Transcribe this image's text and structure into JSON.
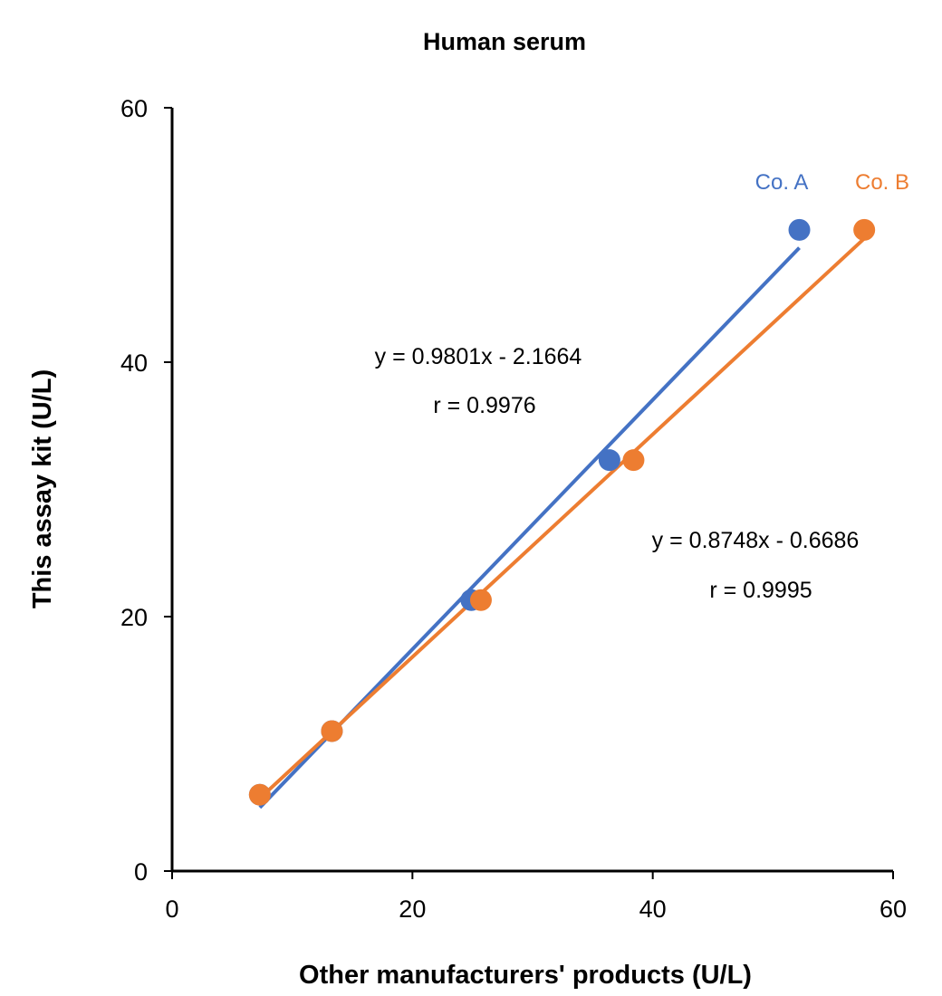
{
  "chart_data": {
    "type": "scatter",
    "title": "Human serum",
    "xlabel": "Other manufacturers' products (U/L)",
    "ylabel": "This assay kit (U/L)",
    "xlim": [
      0,
      60
    ],
    "ylim": [
      0,
      60
    ],
    "xticks": [
      "0",
      "20",
      "40",
      "60"
    ],
    "yticks": [
      "0",
      "20",
      "40",
      "60"
    ],
    "grid": false,
    "series": [
      {
        "name": "Co. A",
        "color": "#4472C4",
        "x": [
          7.3,
          13.3,
          24.9,
          36.4,
          52.2
        ],
        "y": [
          6.0,
          11.0,
          21.3,
          32.3,
          50.4
        ],
        "trendline": {
          "slope": 0.9801,
          "intercept": -2.1664,
          "x_range": [
            7.3,
            52.2
          ]
        },
        "equation": "y = 0.9801x - 2.1664",
        "r": "r = 0.9976"
      },
      {
        "name": "Co. B",
        "color": "#ED7D31",
        "x": [
          7.3,
          13.3,
          25.7,
          38.4,
          57.6
        ],
        "y": [
          6.0,
          11.0,
          21.3,
          32.3,
          50.4
        ],
        "trendline": {
          "slope": 0.8748,
          "intercept": -0.6686,
          "x_range": [
            7.3,
            57.6
          ]
        },
        "equation": "y = 0.8748x - 0.6686",
        "r": "r = 0.9995"
      }
    ]
  }
}
